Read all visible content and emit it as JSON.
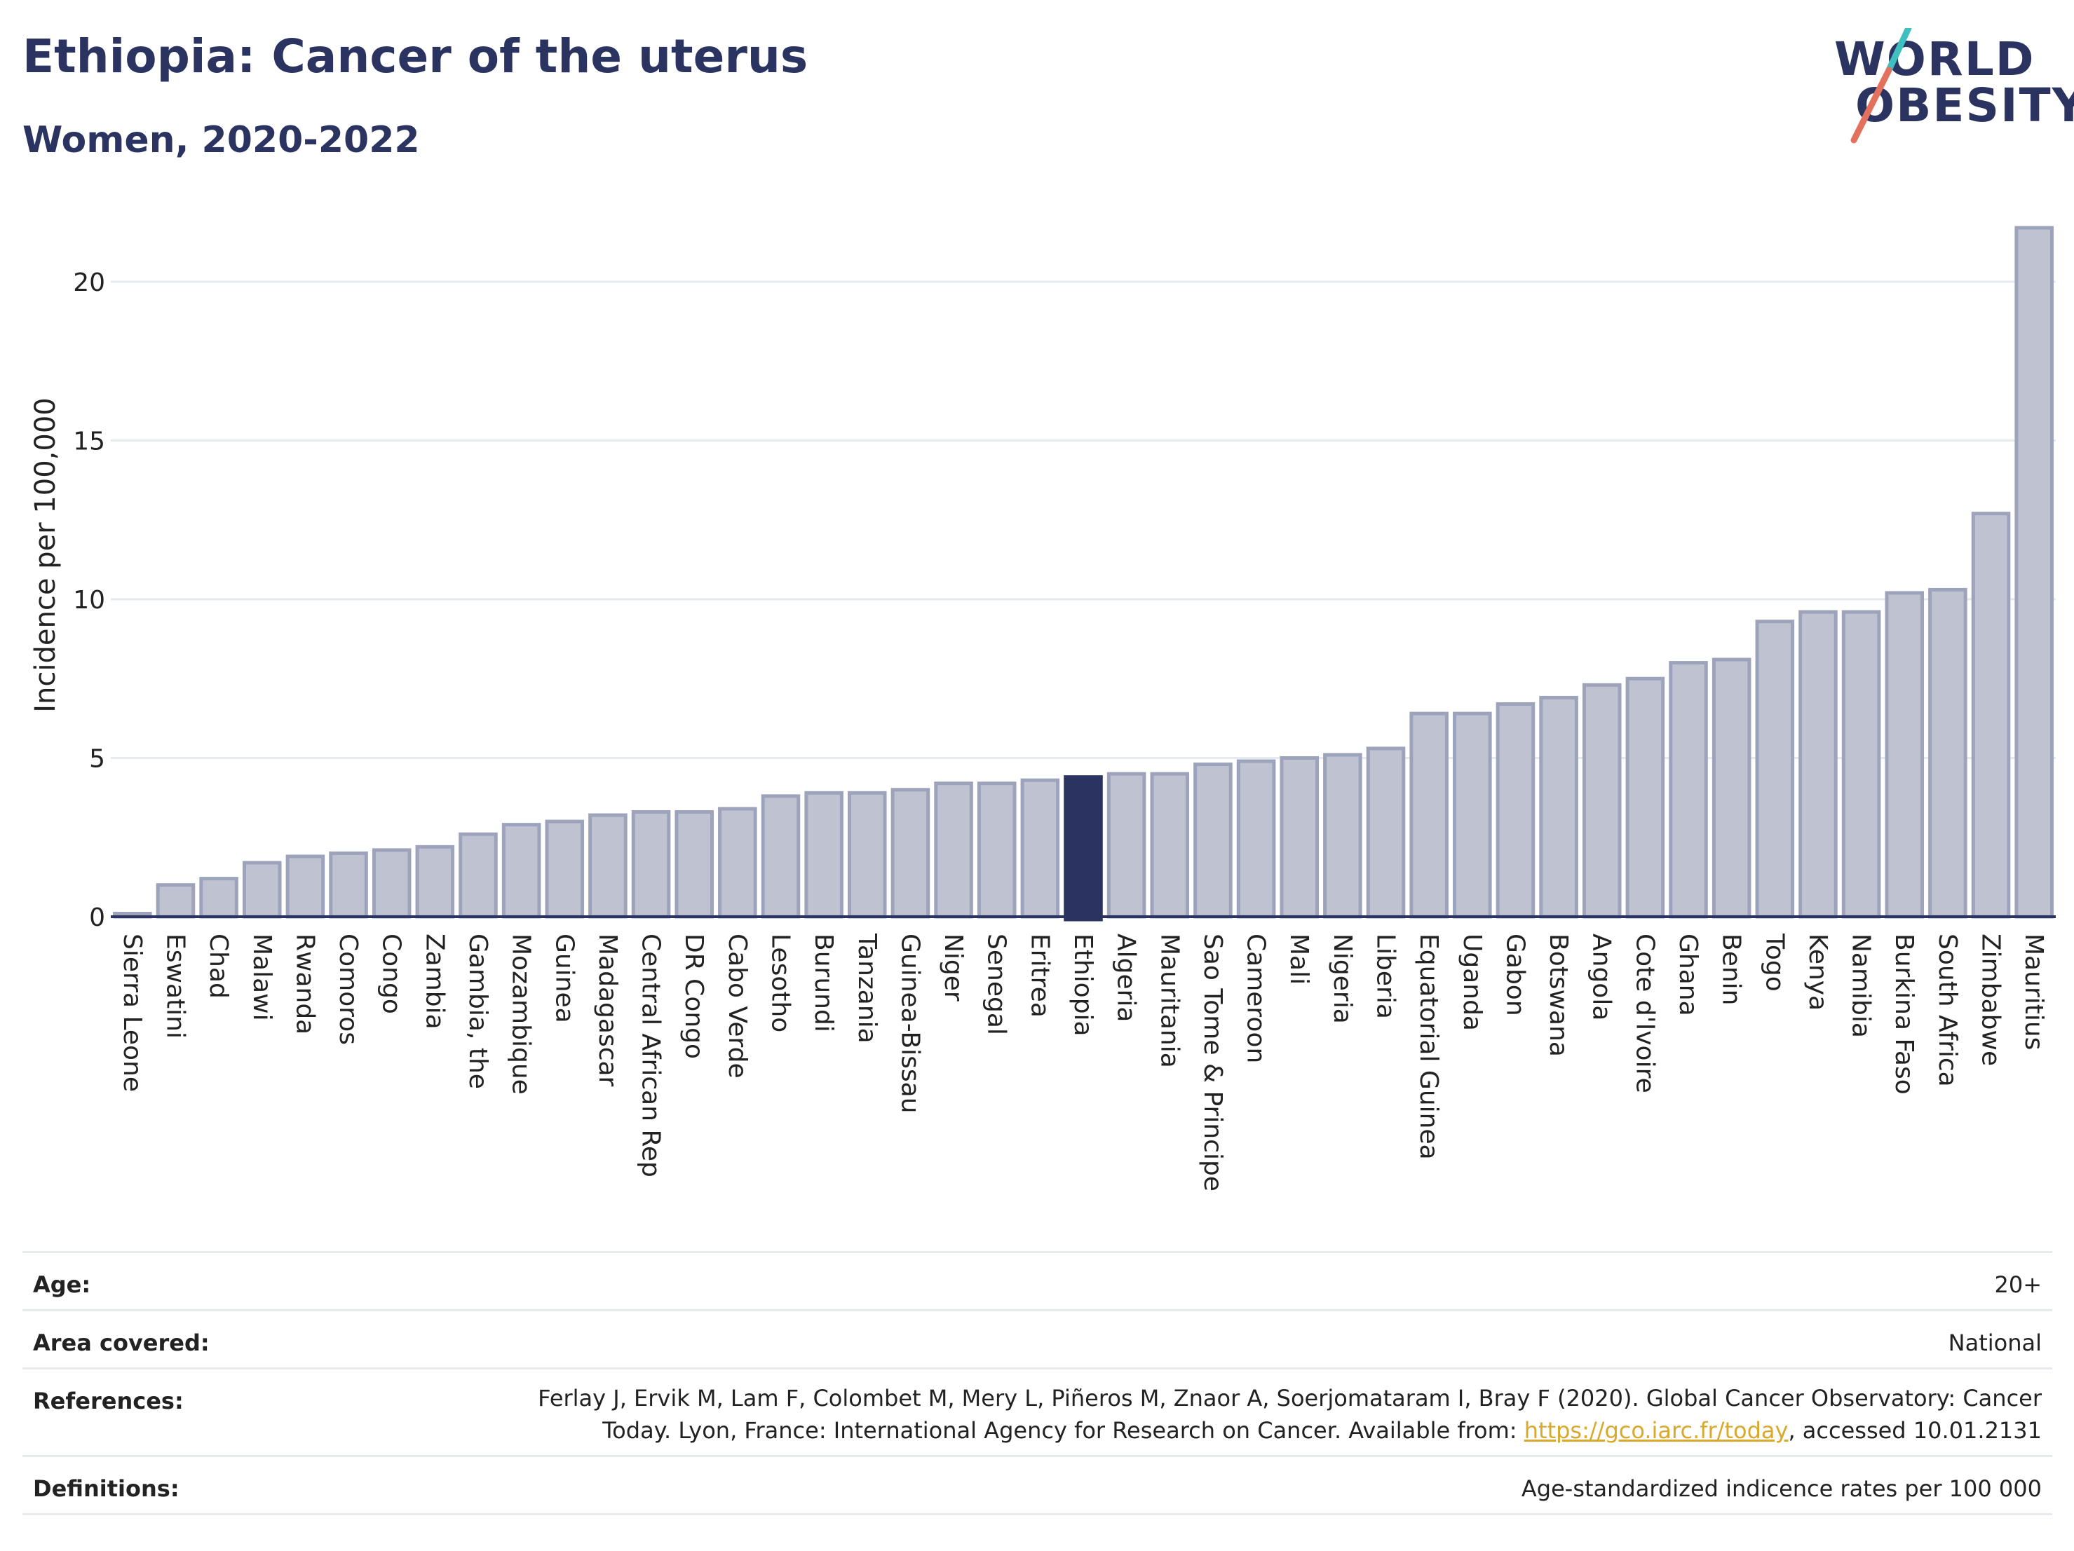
{
  "header": {
    "title": "Ethiopia: Cancer of the uterus",
    "subtitle": "Women, 2020-2022",
    "logo_line1": "WORLD",
    "logo_line2": "OBESITY"
  },
  "colors": {
    "bar": "#bfc3d1",
    "bar_stroke": "#9da3bb",
    "highlight": "#2b3461",
    "axis_text": "#222222",
    "grid": "#e6eaee"
  },
  "chart_data": {
    "type": "bar",
    "title": "Ethiopia: Cancer of the uterus",
    "subtitle": "Women, 2020-2022",
    "xlabel": "",
    "ylabel": "Incidence per 100,000",
    "ylim": [
      0,
      22
    ],
    "yticks": [
      0,
      5,
      10,
      15,
      20
    ],
    "grid": true,
    "highlight": "Ethiopia",
    "categories": [
      "Sierra Leone",
      "Eswatini",
      "Chad",
      "Malawi",
      "Rwanda",
      "Comoros",
      "Congo",
      "Zambia",
      "Gambia, the",
      "Mozambique",
      "Guinea",
      "Madagascar",
      "Central African Rep",
      "DR Congo",
      "Cabo Verde",
      "Lesotho",
      "Burundi",
      "Tanzania",
      "Guinea-Bissau",
      "Niger",
      "Senegal",
      "Eritrea",
      "Ethiopia",
      "Algeria",
      "Mauritania",
      "Sao Tome & Principe",
      "Cameroon",
      "Mali",
      "Nigeria",
      "Liberia",
      "Equatorial Guinea",
      "Uganda",
      "Gabon",
      "Botswana",
      "Angola",
      "Cote d'Ivoire",
      "Ghana",
      "Benin",
      "Togo",
      "Kenya",
      "Namibia",
      "Burkina Faso",
      "South Africa",
      "Zimbabwe",
      "Mauritius"
    ],
    "values": [
      0.1,
      1.0,
      1.2,
      1.7,
      1.9,
      2.0,
      2.1,
      2.2,
      2.6,
      2.9,
      3.0,
      3.2,
      3.3,
      3.3,
      3.4,
      3.8,
      3.9,
      3.9,
      4.0,
      4.2,
      4.2,
      4.3,
      4.4,
      4.5,
      4.5,
      4.8,
      4.9,
      5.0,
      5.1,
      5.3,
      6.4,
      6.4,
      6.7,
      6.9,
      7.3,
      7.5,
      8.0,
      8.1,
      9.3,
      9.6,
      9.6,
      10.2,
      10.3,
      12.7,
      21.7
    ]
  },
  "info": {
    "age_label": "Age:",
    "age_value": "20+",
    "area_label": "Area covered:",
    "area_value": "National",
    "references_label": "References:",
    "references_text1": "Ferlay J, Ervik M, Lam F, Colombet M, Mery L, Piñeros M, Znaor A, Soerjomataram I, Bray F (2020). Global Cancer Observatory: Cancer Today. Lyon, France: International Agency for Research on Cancer. Available from: ",
    "references_link": "https://gco.iarc.fr/today",
    "references_text2": ", accessed 10.01.2131",
    "definitions_label": "Definitions:",
    "definitions_value": "Age-standardized indicence rates per 100 000"
  }
}
